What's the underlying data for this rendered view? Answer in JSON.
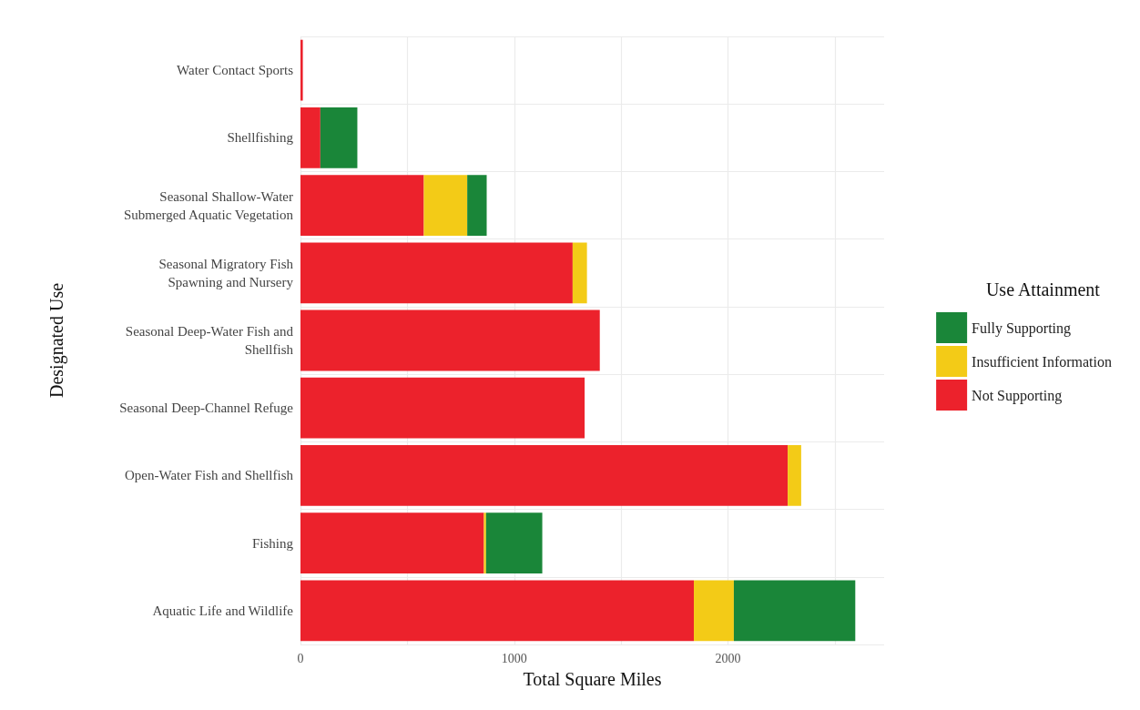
{
  "chart_data": {
    "type": "bar",
    "orientation": "horizontal",
    "stacked": true,
    "xlabel": "Total Square Miles",
    "ylabel": "Designated Use",
    "legend_title": "Use Attainment",
    "legend": "right",
    "grid": true,
    "categories": [
      "Water Contact Sports",
      "Shellfishing",
      "Seasonal Shallow-Water\nSubmerged Aquatic Vegetation",
      "Seasonal Migratory Fish\nSpawning and Nursery",
      "Seasonal Deep-Water Fish and\nShellfish",
      "Seasonal Deep-Channel Refuge",
      "Open-Water Fish and Shellfish",
      "Fishing",
      "Aquatic Life and Wildlife"
    ],
    "xlim": [
      0,
      2730
    ],
    "xticks": [
      0,
      {
        "value": 500,
        "label": null
      },
      1000,
      {
        "value": 1500,
        "label": null
      },
      2000,
      {
        "value": 2500,
        "label": null
      }
    ],
    "series": [
      {
        "name": "Not Supporting",
        "color": "#ec222c",
        "values": [
          11,
          93,
          577,
          1273,
          1400,
          1329,
          2279,
          858,
          1840
        ]
      },
      {
        "name": "Insufficient Information",
        "color": "#f3cb17",
        "values": [
          null,
          null,
          203,
          67,
          null,
          null,
          63,
          10,
          187
        ]
      },
      {
        "name": "Fully Supporting",
        "color": "#1a8639",
        "values": [
          null,
          173,
          91,
          null,
          null,
          null,
          null,
          263,
          568
        ]
      }
    ]
  }
}
